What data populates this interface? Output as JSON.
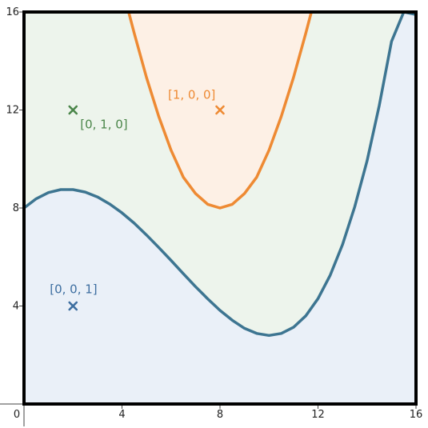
{
  "chart_data": {
    "type": "line",
    "title": "",
    "xlabel": "",
    "ylabel": "",
    "xlim": [
      0,
      16
    ],
    "ylim": [
      0,
      16
    ],
    "x_ticks": [
      0,
      4,
      8,
      12,
      16
    ],
    "y_ticks": [
      4,
      8,
      12,
      16
    ],
    "x_tick_labels": [
      "0",
      "4",
      "8",
      "12",
      "16"
    ],
    "y_tick_labels": [
      "4",
      "8",
      "12",
      "16"
    ],
    "grid": false,
    "colors": {
      "lower_region": "#eaf0f8",
      "middle_region": "#edf4ec",
      "upper_region": "#fdf0e5",
      "lower_curve": "#3d7591",
      "upper_curve": "#ee8a33",
      "green_marker": "#4a8549",
      "blue_marker": "#3d6ea0",
      "orange_marker": "#ee8a33",
      "frame": "#000000"
    },
    "lower_curve": {
      "x": [
        0,
        0.5,
        1,
        1.5,
        2,
        2.5,
        3,
        3.5,
        4,
        4.5,
        5,
        5.5,
        6,
        6.5,
        7,
        7.5,
        8,
        8.5,
        9,
        9.5,
        10,
        10.5,
        11,
        11.5,
        12,
        12.5,
        13,
        13.5,
        14,
        14.5,
        15,
        15.5,
        16
      ],
      "y": [
        8.0,
        8.38,
        8.63,
        8.75,
        8.75,
        8.65,
        8.45,
        8.16,
        7.8,
        7.38,
        6.9,
        6.39,
        5.86,
        5.32,
        4.79,
        4.29,
        3.82,
        3.42,
        3.09,
        2.88,
        2.8,
        2.88,
        3.13,
        3.6,
        4.3,
        5.26,
        6.5,
        8.05,
        9.92,
        12.19,
        14.8,
        17.5,
        15.9
      ]
    },
    "upper_curve": {
      "x": [
        4.27,
        4.5,
        5,
        5.5,
        6,
        6.5,
        7,
        7.5,
        8,
        8.5,
        9,
        9.5,
        10,
        10.5,
        11,
        11.5,
        11.73
      ],
      "y": [
        16,
        15.13,
        13.33,
        11.74,
        10.36,
        9.26,
        8.59,
        8.15,
        8.0,
        8.15,
        8.59,
        9.26,
        10.36,
        11.74,
        13.33,
        15.13,
        16
      ]
    },
    "points": [
      {
        "id": "blue",
        "x": 2,
        "y": 4,
        "label": "[0, 0, 1]"
      },
      {
        "id": "green",
        "x": 2,
        "y": 12,
        "label": "[0, 1, 0]"
      },
      {
        "id": "orange",
        "x": 8,
        "y": 12,
        "label": "[1, 0, 0]"
      }
    ]
  }
}
